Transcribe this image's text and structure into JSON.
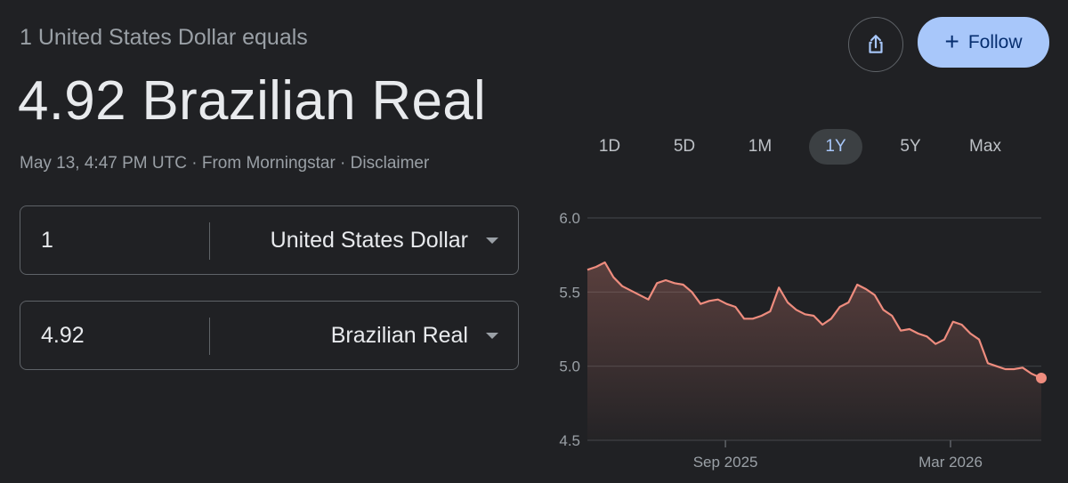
{
  "header": {
    "subtitle": "1 United States Dollar equals",
    "result": "4.92 Brazilian Real",
    "timestamp": "May 13, 4:47 PM UTC",
    "separator": " · ",
    "source": "From Morningstar",
    "disclaimer": "Disclaimer"
  },
  "converter": {
    "from": {
      "value": "1",
      "currency": "United States Dollar"
    },
    "to": {
      "value": "4.92",
      "currency": "Brazilian Real"
    }
  },
  "actions": {
    "share_icon": "share-icon",
    "follow_label": "Follow",
    "follow_icon": "plus-icon"
  },
  "ranges": {
    "tabs": [
      "1D",
      "5D",
      "1M",
      "1Y",
      "5Y",
      "Max"
    ],
    "active": "1Y"
  },
  "colors": {
    "background": "#202124",
    "line": "#ee8c7e",
    "accent": "#a8c7fa"
  },
  "chart_data": {
    "type": "area",
    "ylim": [
      4.5,
      6.0
    ],
    "yticks": [
      "6.0",
      "5.5",
      "5.0",
      "4.5"
    ],
    "xticks": [
      {
        "label": "Sep 2025",
        "x": "2025-09-01"
      },
      {
        "label": "Mar 2026",
        "x": "2026-03-01"
      }
    ],
    "grid": true,
    "series": [
      {
        "x": [
          "2025-05-13",
          "2025-05-20",
          "2025-05-27",
          "2025-06-03",
          "2025-06-10",
          "2025-06-17",
          "2025-06-24",
          "2025-07-01",
          "2025-07-08",
          "2025-07-15",
          "2025-07-22",
          "2025-07-29",
          "2025-08-05",
          "2025-08-12",
          "2025-08-19",
          "2025-08-26",
          "2025-09-02",
          "2025-09-09",
          "2025-09-16",
          "2025-09-23",
          "2025-09-30",
          "2025-10-07",
          "2025-10-14",
          "2025-10-21",
          "2025-10-28",
          "2025-11-04",
          "2025-11-11",
          "2025-11-18",
          "2025-11-25",
          "2025-12-02",
          "2025-12-09",
          "2025-12-16",
          "2025-12-23",
          "2025-12-30",
          "2026-01-06",
          "2026-01-13",
          "2026-01-20",
          "2026-01-27",
          "2026-02-03",
          "2026-02-10",
          "2026-02-17",
          "2026-02-24",
          "2026-03-03",
          "2026-03-10",
          "2026-03-17",
          "2026-03-24",
          "2026-03-31",
          "2026-04-07",
          "2026-04-14",
          "2026-04-21",
          "2026-04-28",
          "2026-05-05",
          "2026-05-13"
        ],
        "values": [
          5.65,
          5.67,
          5.7,
          5.6,
          5.54,
          5.51,
          5.48,
          5.45,
          5.56,
          5.58,
          5.56,
          5.55,
          5.5,
          5.42,
          5.44,
          5.45,
          5.42,
          5.4,
          5.32,
          5.32,
          5.34,
          5.37,
          5.53,
          5.43,
          5.38,
          5.35,
          5.34,
          5.28,
          5.32,
          5.4,
          5.43,
          5.55,
          5.52,
          5.48,
          5.38,
          5.34,
          5.24,
          5.25,
          5.22,
          5.2,
          5.15,
          5.18,
          5.3,
          5.28,
          5.22,
          5.18,
          5.02,
          5.0,
          4.98,
          4.98,
          4.99,
          4.95,
          4.92
        ]
      }
    ]
  }
}
